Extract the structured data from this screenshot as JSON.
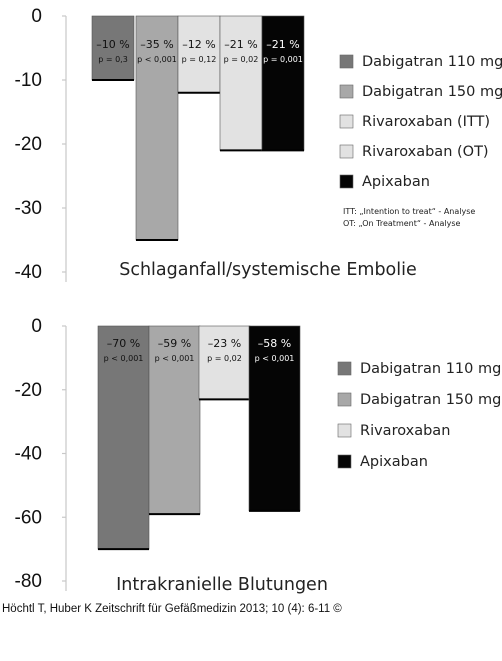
{
  "colors": {
    "dabi110": "#777777",
    "dabi150": "#a8a8a8",
    "light": "#e2e2e2",
    "apix": "#050505",
    "axis": "#c8c8c8"
  },
  "chart_data": [
    {
      "type": "bar",
      "title": "Schlaganfall/systemische Embolie",
      "ylim": [
        -40,
        0
      ],
      "yticks": [
        "0",
        "-10",
        "-20",
        "-30",
        "-40"
      ],
      "grid": false,
      "legend_position": "right",
      "categories": [
        "Dabigatran 110 mg",
        "Dabigatran 150 mg",
        "Rivaroxaban (ITT)",
        "Rivaroxaban (OT)",
        "Apixaban"
      ],
      "values": [
        -10,
        -35,
        -12,
        -21,
        -21
      ],
      "value_labels": [
        "–10 %",
        "–35 %",
        "–12 %",
        "–21 %",
        "–21 %"
      ],
      "p_labels": [
        "p = 0,3",
        "p < 0,001",
        "p = 0,12",
        "p = 0,02",
        "p = 0,001"
      ],
      "colors": [
        "#777777",
        "#a8a8a8",
        "#e2e2e2",
        "#e2e2e2",
        "#050505"
      ],
      "notes": [
        "ITT:  „Intention to treat“ - Analyse",
        "OT:  „On Treatment“ - Analyse"
      ]
    },
    {
      "type": "bar",
      "title": "Intrakranielle Blutungen",
      "ylim": [
        -80,
        0
      ],
      "yticks": [
        "0",
        "-20",
        "-40",
        "-60",
        "-80"
      ],
      "grid": false,
      "legend_position": "right",
      "categories": [
        "Dabigatran 110 mg",
        "Dabigatran 150 mg",
        "Rivaroxaban",
        "Apixaban"
      ],
      "values": [
        -70,
        -59,
        -23,
        -58
      ],
      "value_labels": [
        "–70 %",
        "–59 %",
        "–23 %",
        "–58 %"
      ],
      "p_labels": [
        "p < 0,001",
        "p < 0,001",
        "p = 0,02",
        "p < 0,001"
      ],
      "colors": [
        "#777777",
        "#a8a8a8",
        "#e2e2e2",
        "#050505"
      ],
      "notes": []
    }
  ],
  "footer": "Höchtl T, Huber K Zeitschrift für Gefäßmedizin 2013; 10 (4): 6-11 ©"
}
